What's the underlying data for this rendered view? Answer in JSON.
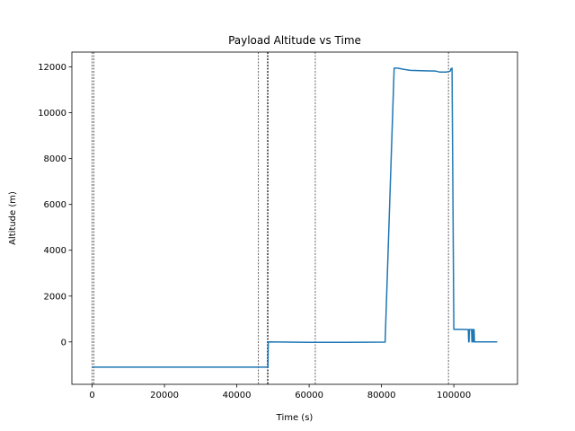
{
  "chart_data": {
    "type": "line",
    "title": "Payload Altitude vs Time",
    "xlabel": "Time (s)",
    "ylabel": "Altitude (m)",
    "xlim": [
      -5600,
      117600
    ],
    "ylim": [
      -1850,
      12650
    ],
    "xticks": [
      0,
      20000,
      40000,
      60000,
      80000,
      100000
    ],
    "xtick_labels": [
      "0",
      "20000",
      "40000",
      "60000",
      "80000",
      "100000"
    ],
    "yticks": [
      0,
      2000,
      4000,
      6000,
      8000,
      10000,
      12000
    ],
    "ytick_labels": [
      "0",
      "2000",
      "4000",
      "6000",
      "8000",
      "10000",
      "12000"
    ],
    "grid": false,
    "series_color": "#1f77b4",
    "vline_color": "#000000",
    "vlines_x": [
      0,
      500,
      46000,
      48400,
      48700,
      61700,
      98500
    ],
    "series": [
      {
        "x": [
          0,
          48600,
          48600,
          48700,
          60000,
          70000,
          81000,
          83500,
          84500,
          86000,
          88000,
          92000,
          95000,
          96000,
          98000,
          99000,
          99200,
          99500,
          100000,
          102000,
          104000,
          104100,
          104200,
          104300,
          104900,
          105000,
          105100,
          105200,
          105300,
          105400,
          105500,
          105600,
          105700,
          106000,
          112000
        ],
        "y": [
          -1100,
          -1100,
          -1100,
          0,
          -20,
          -20,
          -10,
          11950,
          11950,
          11900,
          11850,
          11830,
          11820,
          11780,
          11780,
          11820,
          11920,
          11950,
          550,
          550,
          540,
          0,
          0,
          540,
          540,
          0,
          0,
          540,
          540,
          0,
          0,
          540,
          0,
          0,
          0
        ]
      }
    ]
  }
}
